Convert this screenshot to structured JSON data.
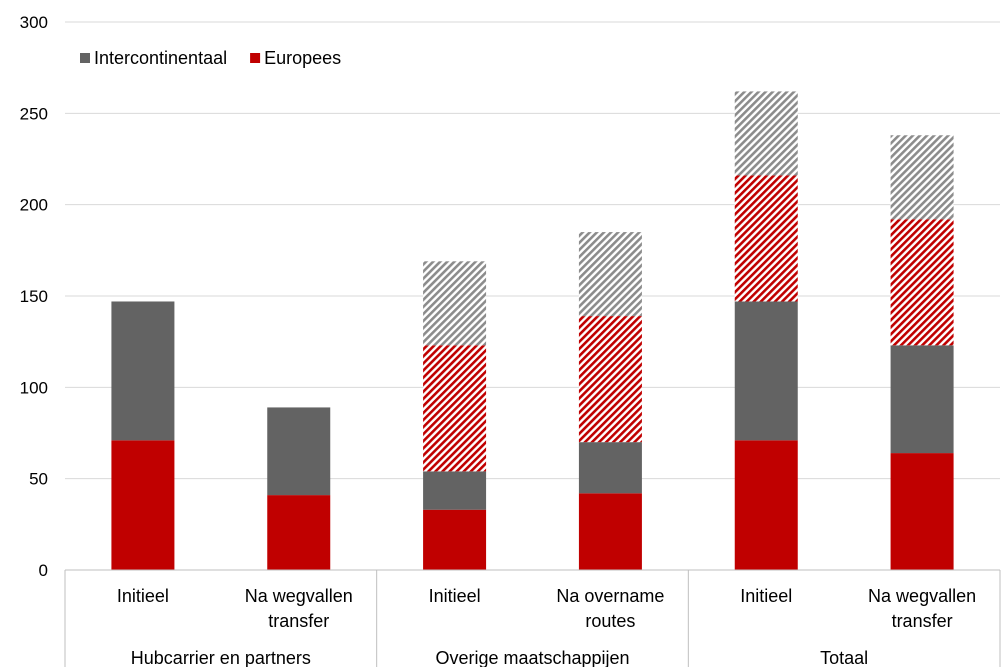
{
  "chart_data": {
    "type": "bar",
    "stacked": true,
    "title": "",
    "xlabel": "",
    "ylabel": "",
    "ylim": [
      0,
      300
    ],
    "y_ticks": [
      0,
      50,
      100,
      150,
      200,
      250,
      300
    ],
    "grid": true,
    "legend_position": "top-left",
    "groups": [
      {
        "label": "Hubcarrier en partners",
        "span": [
          0,
          1
        ]
      },
      {
        "label": "Overige maatschappijen",
        "span": [
          2,
          3
        ]
      },
      {
        "label": "Totaal",
        "span": [
          4,
          5
        ]
      }
    ],
    "categories": [
      "Initieel",
      "Na wegvallen transfer",
      "Initieel",
      "Na overname routes",
      "Initieel",
      "Na wegvallen transfer"
    ],
    "category_lines": [
      [
        "Initieel"
      ],
      [
        "Na wegvallen",
        "transfer"
      ],
      [
        "Initieel"
      ],
      [
        "Na overname",
        "routes"
      ],
      [
        "Initieel"
      ],
      [
        "Na wegvallen",
        "transfer"
      ]
    ],
    "series": [
      {
        "name": "Europees",
        "color": "#c00000",
        "pattern": "solid",
        "legend": true,
        "values": [
          71,
          41,
          33,
          42,
          71,
          64
        ]
      },
      {
        "name": "Intercontinentaal",
        "color": "#636363",
        "pattern": "solid",
        "legend": true,
        "values": [
          76,
          48,
          21,
          28,
          76,
          59
        ]
      },
      {
        "color": "#c00000",
        "pattern": "hatched",
        "legend": false,
        "values": [
          0,
          0,
          69,
          69,
          69,
          69
        ]
      },
      {
        "color": "#8c8c8c",
        "pattern": "hatched",
        "legend": false,
        "values": [
          0,
          0,
          46,
          46,
          46,
          46
        ]
      }
    ],
    "legend_order": [
      "Intercontinentaal",
      "Europees"
    ]
  }
}
